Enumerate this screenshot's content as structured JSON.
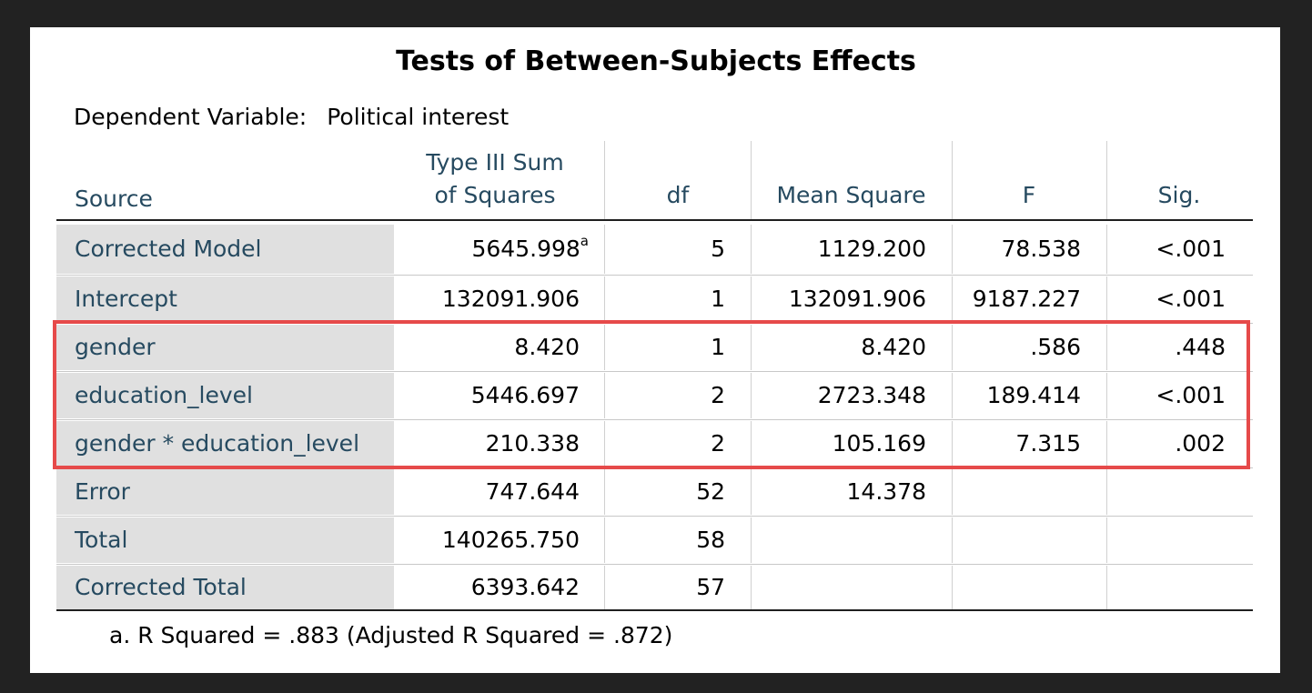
{
  "title": "Tests of Between-Subjects Effects",
  "dependent_variable": {
    "label": "Dependent Variable:",
    "value": "Political interest"
  },
  "columns": {
    "source": "Source",
    "ss_line1": "Type III Sum",
    "ss_line2": "of Squares",
    "df": "df",
    "ms": "Mean Square",
    "f": "F",
    "sig": "Sig."
  },
  "rows": [
    {
      "source": "Corrected Model",
      "ss": "5645.998",
      "ss_note": "a",
      "df": "5",
      "ms": "1129.200",
      "f": "78.538",
      "sig": "<.001"
    },
    {
      "source": "Intercept",
      "ss": "132091.906",
      "df": "1",
      "ms": "132091.906",
      "f": "9187.227",
      "sig": "<.001"
    },
    {
      "source": "gender",
      "ss": "8.420",
      "df": "1",
      "ms": "8.420",
      "f": ".586",
      "sig": ".448"
    },
    {
      "source": "education_level",
      "ss": "5446.697",
      "df": "2",
      "ms": "2723.348",
      "f": "189.414",
      "sig": "<.001"
    },
    {
      "source": "gender * education_level",
      "ss": "210.338",
      "df": "2",
      "ms": "105.169",
      "f": "7.315",
      "sig": ".002"
    },
    {
      "source": "Error",
      "ss": "747.644",
      "df": "52",
      "ms": "14.378",
      "f": "",
      "sig": ""
    },
    {
      "source": "Total",
      "ss": "140265.750",
      "df": "58",
      "ms": "",
      "f": "",
      "sig": ""
    },
    {
      "source": "Corrected Total",
      "ss": "6393.642",
      "df": "57",
      "ms": "",
      "f": "",
      "sig": ""
    }
  ],
  "footnote": "a. R Squared = .883 (Adjusted R Squared = .872)",
  "colors": {
    "header_text": "#264a60",
    "source_bg": "#e0e0e0",
    "highlight_border": "#e64a4a",
    "backdrop": "#222222"
  }
}
